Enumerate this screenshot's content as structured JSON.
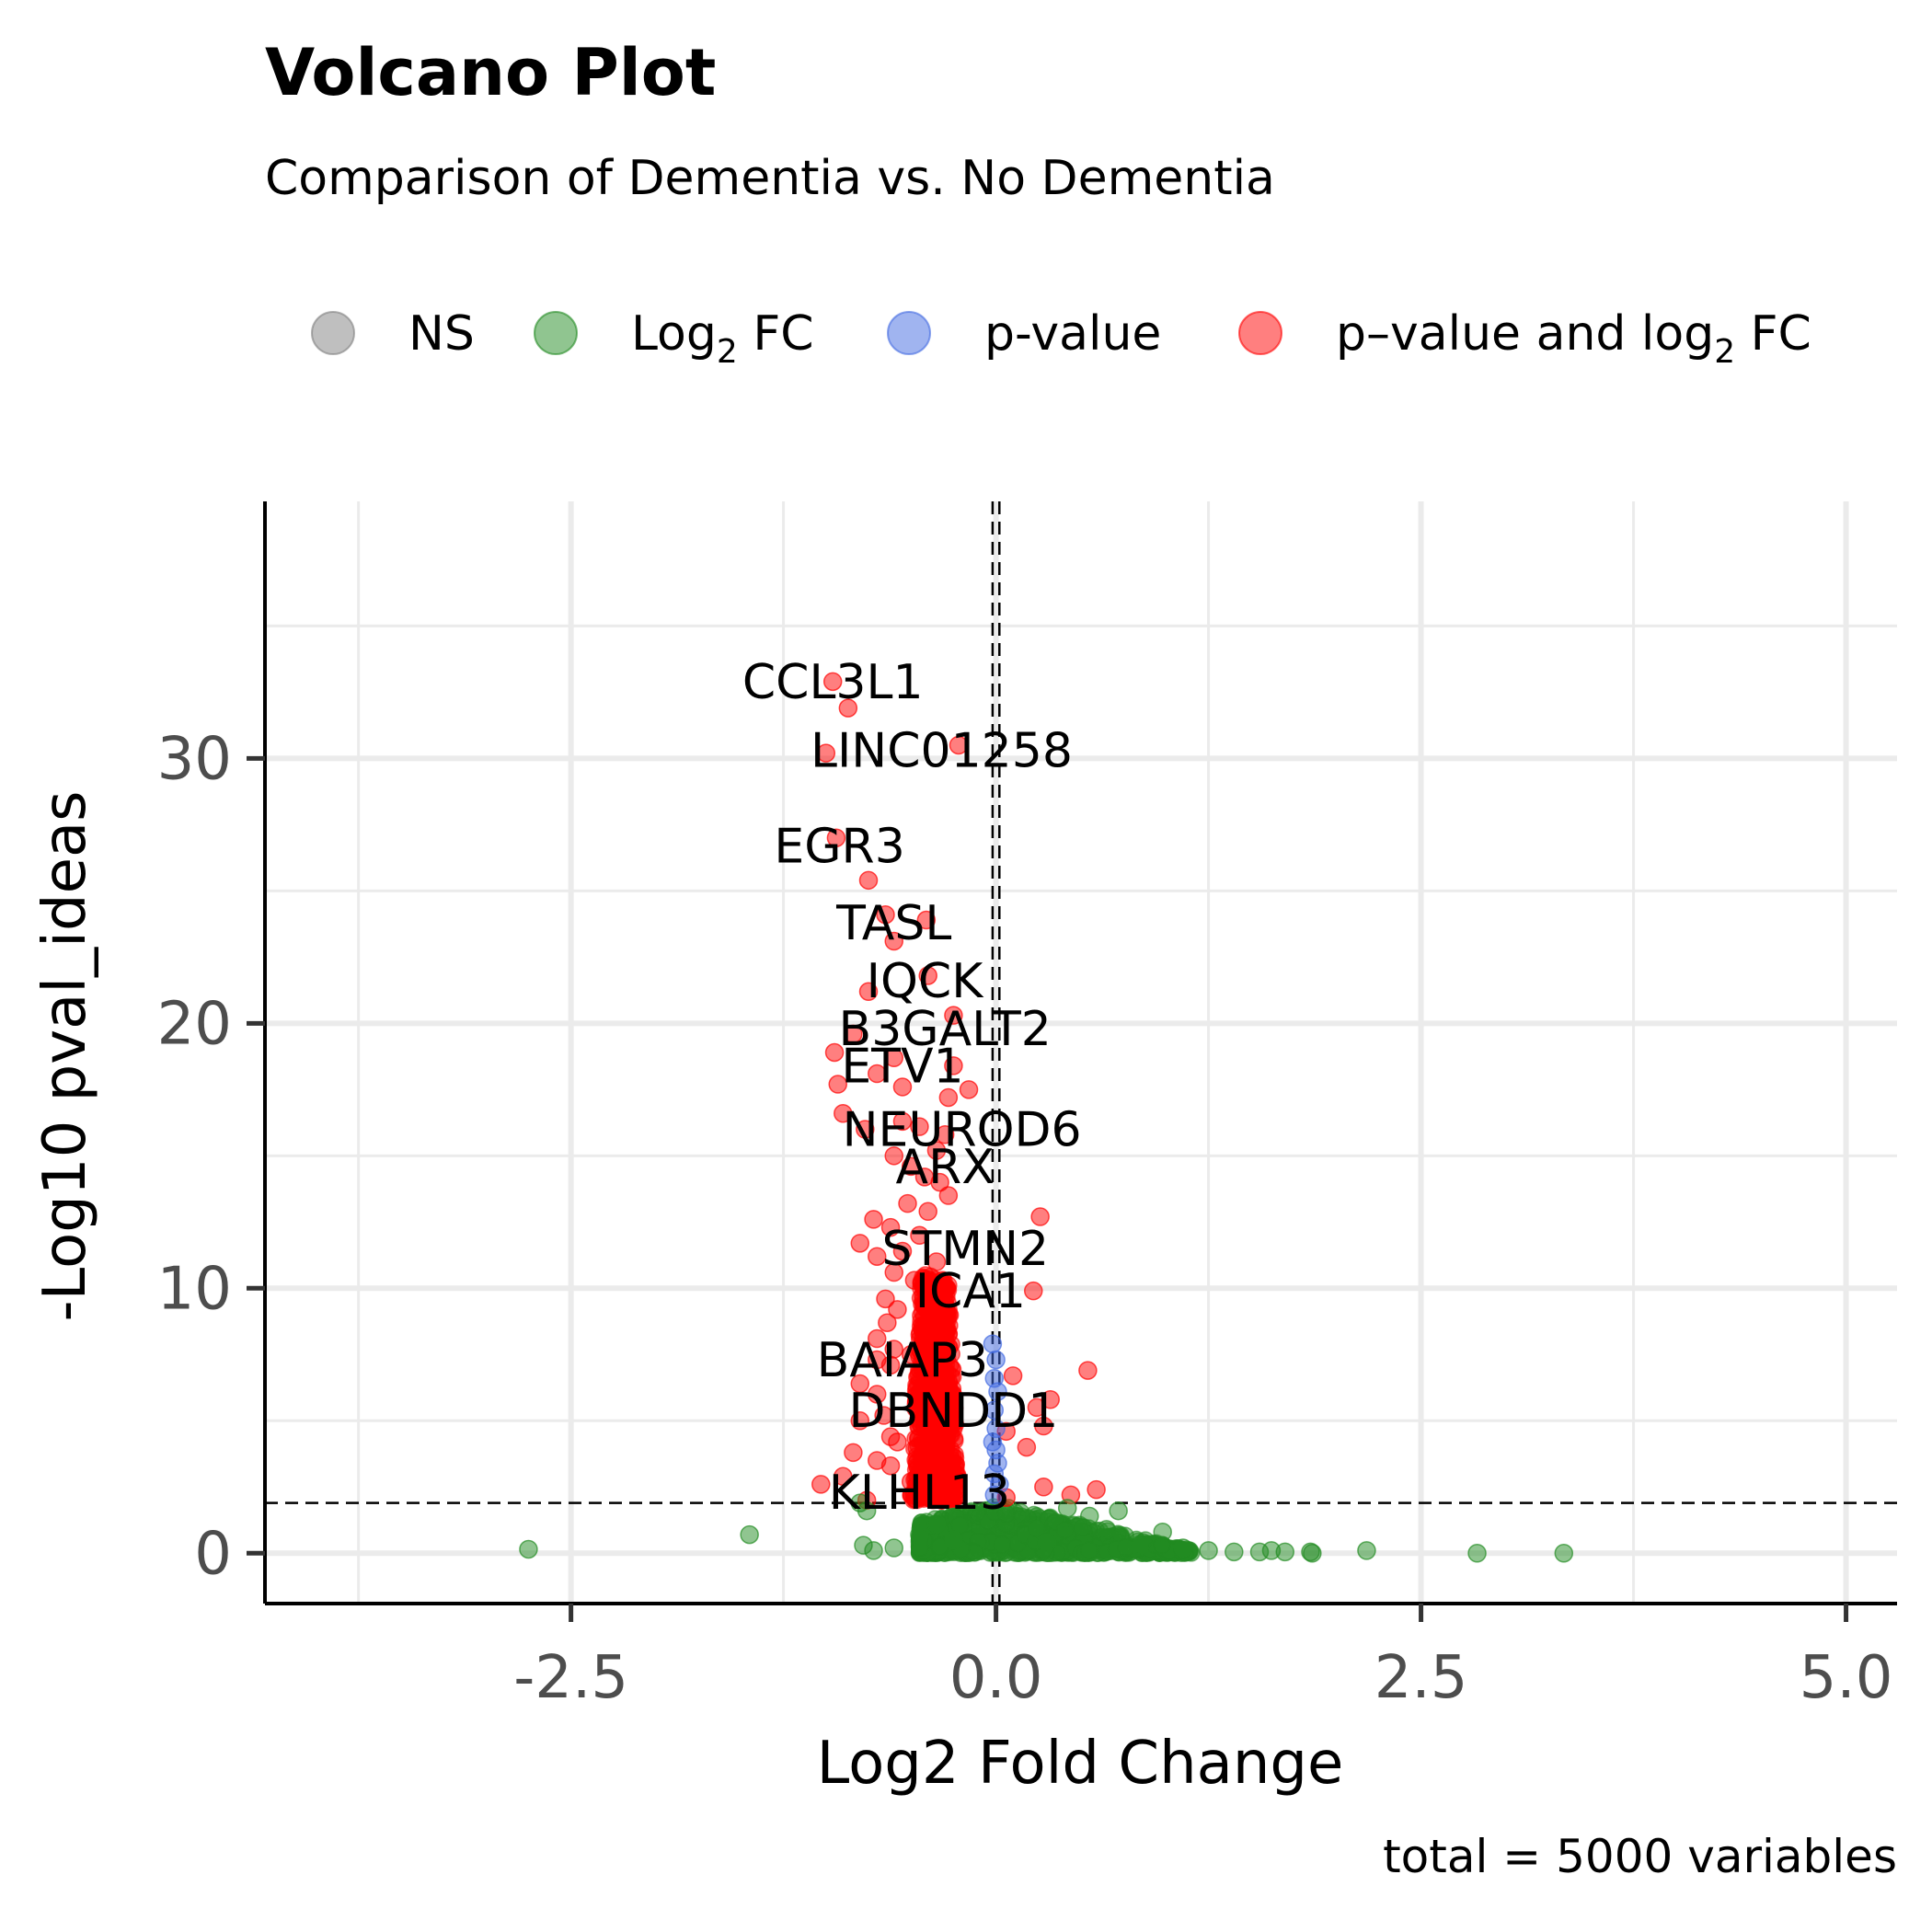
{
  "chart_data": {
    "type": "scatter",
    "title": "Volcano Plot",
    "subtitle": "Comparison of Dementia vs. No Dementia",
    "xlabel": "Log2 Fold Change",
    "ylabel": "-Log10 pval_ideas",
    "caption": "total = 5000 variables",
    "xlim": [
      -4.3,
      5.3
    ],
    "ylim": [
      -1.9,
      39.7
    ],
    "x_ticks": [
      -2.5,
      0.0,
      2.5,
      5.0
    ],
    "x_tick_labels": [
      "-2.5",
      "0.0",
      "2.5",
      "5.0"
    ],
    "y_ticks": [
      0,
      10,
      20,
      30
    ],
    "y_tick_labels": [
      "0",
      "10",
      "20",
      "30"
    ],
    "grid": true,
    "legend_position": "top",
    "legend": [
      {
        "key": "ns",
        "label": "NS",
        "color": "#7f7f7f"
      },
      {
        "key": "fc",
        "label": "Log",
        "sub": "2",
        "suffix": " FC",
        "color": "#228b22"
      },
      {
        "key": "p",
        "label": "p-value",
        "color": "#4169e1"
      },
      {
        "key": "both",
        "label": "p–value and log",
        "sub": "2",
        "suffix": " FC",
        "color": "#ff0000"
      }
    ],
    "thresholds": {
      "fc_cutoffs": [
        -0.02,
        0.02
      ],
      "p_cutoff_neglog10": 1.9
    },
    "series": [
      {
        "key": "both",
        "points": [
          [
            -0.96,
            32.9
          ],
          [
            -0.87,
            31.9
          ],
          [
            -0.22,
            30.5
          ],
          [
            -1.0,
            30.2
          ],
          [
            -0.94,
            27.0
          ],
          [
            -0.75,
            25.4
          ],
          [
            -0.65,
            24.1
          ],
          [
            -0.41,
            23.9
          ],
          [
            -0.6,
            23.1
          ],
          [
            -0.4,
            21.8
          ],
          [
            -0.75,
            21.2
          ],
          [
            -0.25,
            20.3
          ],
          [
            -0.84,
            19.6
          ],
          [
            -0.95,
            18.9
          ],
          [
            -0.6,
            18.7
          ],
          [
            -0.25,
            18.4
          ],
          [
            -0.7,
            18.1
          ],
          [
            -0.93,
            17.7
          ],
          [
            -0.55,
            17.6
          ],
          [
            -0.16,
            17.5
          ],
          [
            -0.28,
            17.2
          ],
          [
            -0.9,
            16.6
          ],
          [
            -0.55,
            16.3
          ],
          [
            -0.45,
            16.1
          ],
          [
            -0.77,
            16.0
          ],
          [
            -0.3,
            15.8
          ],
          [
            -0.35,
            15.2
          ],
          [
            -0.6,
            15.0
          ],
          [
            -0.5,
            14.6
          ],
          [
            -0.42,
            14.2
          ],
          [
            -0.33,
            14.0
          ],
          [
            -0.28,
            13.5
          ],
          [
            -0.52,
            13.2
          ],
          [
            -0.4,
            12.9
          ],
          [
            0.26,
            12.7
          ],
          [
            -0.72,
            12.6
          ],
          [
            -0.62,
            12.3
          ],
          [
            -0.45,
            12.0
          ],
          [
            -0.8,
            11.7
          ],
          [
            -0.55,
            11.4
          ],
          [
            -0.7,
            11.2
          ],
          [
            -0.35,
            11.0
          ],
          [
            -0.6,
            10.6
          ],
          [
            -0.48,
            10.3
          ],
          [
            0.22,
            9.9
          ],
          [
            -0.65,
            9.6
          ],
          [
            -0.58,
            9.2
          ],
          [
            -0.64,
            8.7
          ],
          [
            -0.7,
            8.1
          ],
          [
            -0.6,
            7.7
          ],
          [
            -0.5,
            7.5
          ],
          [
            -0.7,
            7.3
          ],
          [
            -0.62,
            7.1
          ],
          [
            0.54,
            6.9
          ],
          [
            0.1,
            6.7
          ],
          [
            -0.8,
            6.4
          ],
          [
            -0.7,
            6.0
          ],
          [
            0.32,
            5.8
          ],
          [
            0.24,
            5.5
          ],
          [
            -0.66,
            5.2
          ],
          [
            -0.8,
            5.0
          ],
          [
            0.28,
            4.8
          ],
          [
            0.06,
            4.6
          ],
          [
            -0.62,
            4.4
          ],
          [
            -0.58,
            4.2
          ],
          [
            0.18,
            4.0
          ],
          [
            -0.84,
            3.8
          ],
          [
            -0.7,
            3.5
          ],
          [
            -0.62,
            3.3
          ],
          [
            -0.9,
            2.9
          ],
          [
            -1.03,
            2.6
          ],
          [
            -0.5,
            2.7
          ],
          [
            0.59,
            2.4
          ],
          [
            0.28,
            2.5
          ],
          [
            0.44,
            2.2
          ],
          [
            0.06,
            2.1
          ],
          [
            -0.32,
            2.0
          ],
          [
            -0.76,
            2.0
          ]
        ]
      },
      {
        "key": "p",
        "points": [
          [
            -0.02,
            7.9
          ],
          [
            0.0,
            7.3
          ],
          [
            -0.01,
            6.6
          ],
          [
            0.01,
            6.1
          ],
          [
            -0.01,
            5.4
          ],
          [
            0.0,
            4.7
          ],
          [
            -0.02,
            4.2
          ],
          [
            0.0,
            3.9
          ],
          [
            0.01,
            3.4
          ],
          [
            -0.01,
            3.0
          ],
          [
            0.02,
            2.6
          ],
          [
            -0.01,
            2.2
          ]
        ]
      },
      {
        "key": "fc",
        "points": [
          [
            -2.75,
            0.15
          ],
          [
            -1.45,
            0.7
          ],
          [
            -0.8,
            1.9
          ],
          [
            -0.76,
            1.6
          ],
          [
            -0.72,
            0.1
          ],
          [
            -0.78,
            0.3
          ],
          [
            -0.6,
            0.2
          ],
          [
            -0.45,
            0.7
          ],
          [
            -0.35,
            1.1
          ],
          [
            0.42,
            1.7
          ],
          [
            0.55,
            1.4
          ],
          [
            0.72,
            1.6
          ],
          [
            0.98,
            0.8
          ],
          [
            1.25,
            0.1
          ],
          [
            1.4,
            0.05
          ],
          [
            1.55,
            0.05
          ],
          [
            1.62,
            0.1
          ],
          [
            1.7,
            0.05
          ],
          [
            1.85,
            0.05
          ],
          [
            1.86,
            0.0
          ],
          [
            2.18,
            0.1
          ],
          [
            2.83,
            0.0
          ],
          [
            3.34,
            0.0
          ],
          [
            0.85,
            0.3
          ],
          [
            0.65,
            0.9
          ],
          [
            -0.25,
            0.5
          ],
          [
            0.3,
            0.4
          ],
          [
            1.1,
            0.2
          ]
        ]
      }
    ],
    "background_cloud": {
      "both": {
        "x_range": [
          -0.62,
          -0.1
        ],
        "y_range": [
          2.0,
          10.5
        ],
        "count": 640
      },
      "fc": {
        "x_range": [
          -0.45,
          1.15
        ],
        "y_range": [
          0.0,
          1.85
        ],
        "count": 900
      }
    },
    "annotations": [
      {
        "label": "CCL3L1",
        "x": -0.96,
        "y": 32.9
      },
      {
        "label": "LINC01258",
        "x": -0.32,
        "y": 30.3
      },
      {
        "label": "EGR3",
        "x": -0.92,
        "y": 26.7
      },
      {
        "label": "TASL",
        "x": -0.6,
        "y": 23.8
      },
      {
        "label": "IQCK",
        "x": -0.42,
        "y": 21.6
      },
      {
        "label": "B3GALT2",
        "x": -0.3,
        "y": 19.8
      },
      {
        "label": "ETV1",
        "x": -0.55,
        "y": 18.4
      },
      {
        "label": "NEUROD6",
        "x": -0.2,
        "y": 16.0
      },
      {
        "label": "ARX",
        "x": -0.3,
        "y": 14.6
      },
      {
        "label": "STMN2",
        "x": -0.18,
        "y": 11.5
      },
      {
        "label": "ICA1",
        "x": -0.15,
        "y": 9.9
      },
      {
        "label": "BAIAP3",
        "x": -0.55,
        "y": 7.3
      },
      {
        "label": "DBNDD1",
        "x": -0.25,
        "y": 5.4
      },
      {
        "label": "KLHL13",
        "x": -0.45,
        "y": 2.3
      }
    ]
  }
}
